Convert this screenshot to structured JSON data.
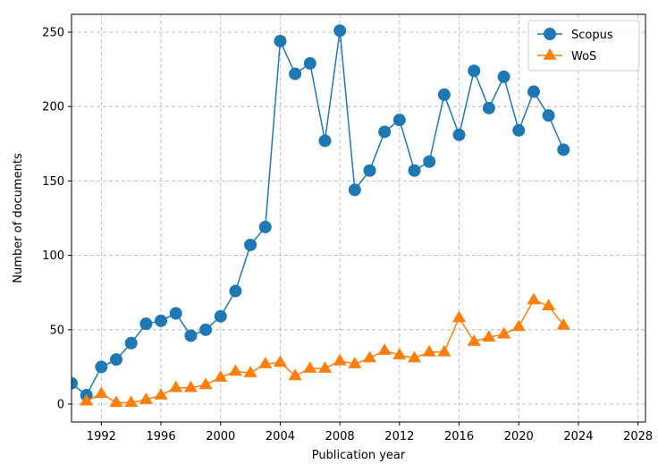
{
  "chart_data": {
    "type": "line",
    "xlabel": "Publication year",
    "ylabel": "Number of documents",
    "xlim": [
      1990,
      2028.5
    ],
    "ylim": [
      -12,
      262
    ],
    "xticks": [
      1992,
      1996,
      2000,
      2004,
      2008,
      2012,
      2016,
      2020,
      2024,
      2028
    ],
    "yticks": [
      0,
      50,
      100,
      150,
      200,
      250
    ],
    "grid": true,
    "legend_position": "top-right",
    "series": [
      {
        "name": "Scopus",
        "color": "#1f77b4",
        "marker": "circle",
        "x": [
          1990,
          1991,
          1992,
          1993,
          1994,
          1995,
          1996,
          1997,
          1998,
          1999,
          2000,
          2001,
          2002,
          2003,
          2004,
          2005,
          2006,
          2007,
          2008,
          2009,
          2010,
          2011,
          2012,
          2013,
          2014,
          2015,
          2016,
          2017,
          2018,
          2019,
          2020,
          2021,
          2022,
          2023
        ],
        "y": [
          14,
          6,
          25,
          30,
          41,
          54,
          56,
          61,
          46,
          50,
          59,
          76,
          107,
          119,
          244,
          222,
          229,
          177,
          251,
          144,
          157,
          183,
          191,
          157,
          163,
          208,
          181,
          224,
          199,
          220,
          184,
          210,
          194,
          171
        ]
      },
      {
        "name": "WoS",
        "color": "#ff7f0e",
        "marker": "triangle",
        "x": [
          1991,
          1992,
          1993,
          1994,
          1995,
          1996,
          1997,
          1998,
          1999,
          2000,
          2001,
          2002,
          2003,
          2004,
          2005,
          2006,
          2007,
          2008,
          2009,
          2010,
          2011,
          2012,
          2013,
          2014,
          2015,
          2016,
          2017,
          2018,
          2019,
          2020,
          2021,
          2022,
          2023
        ],
        "y": [
          2,
          7,
          1,
          1,
          3,
          6,
          11,
          11,
          13,
          18,
          22,
          21,
          27,
          28,
          19,
          24,
          24,
          29,
          27,
          31,
          36,
          33,
          31,
          35,
          35,
          58,
          42,
          45,
          47,
          52,
          70,
          66,
          53
        ]
      }
    ]
  }
}
